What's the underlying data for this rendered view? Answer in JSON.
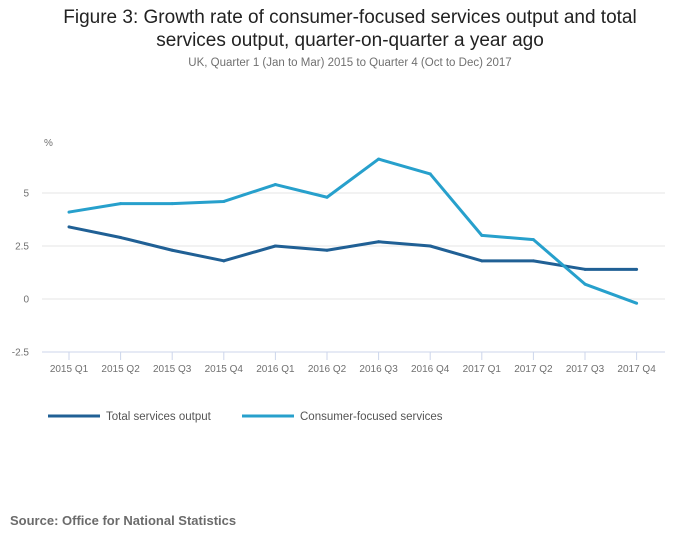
{
  "chart_data": {
    "type": "line",
    "title": "Figure 3: Growth rate of consumer-focused services output and total services output, quarter-on-quarter a year ago",
    "title_line1": "Figure 3: Growth rate of consumer-focused services output and total",
    "title_line2": "services output, quarter-on-quarter a year ago",
    "subtitle": "UK, Quarter 1 (Jan to Mar) 2015 to Quarter 4 (Oct to Dec) 2017",
    "xlabel": "",
    "ylabel": "%",
    "ylim": [
      -2.5,
      7.5
    ],
    "yticks": [
      -2.5,
      0,
      2.5,
      5
    ],
    "ytick_labels": [
      "-2.5",
      "0",
      "2.5",
      "5"
    ],
    "grid": true,
    "categories": [
      "2015 Q1",
      "2015 Q2",
      "2015 Q3",
      "2015 Q4",
      "2016 Q1",
      "2016 Q2",
      "2016 Q3",
      "2016 Q4",
      "2017 Q1",
      "2017 Q2",
      "2017 Q3",
      "2017 Q4"
    ],
    "series": [
      {
        "name": "Total services output",
        "color": "#206095",
        "values": [
          3.4,
          2.9,
          2.3,
          1.8,
          2.5,
          2.3,
          2.7,
          2.5,
          1.8,
          1.8,
          1.4,
          1.4
        ]
      },
      {
        "name": "Consumer-focused services",
        "color": "#27a0cc",
        "values": [
          4.1,
          4.5,
          4.5,
          4.6,
          5.4,
          4.8,
          6.6,
          5.9,
          3.0,
          2.8,
          0.7,
          -0.2
        ]
      }
    ],
    "legend_position": "bottom-left"
  },
  "source": "Source: Office for National Statistics"
}
